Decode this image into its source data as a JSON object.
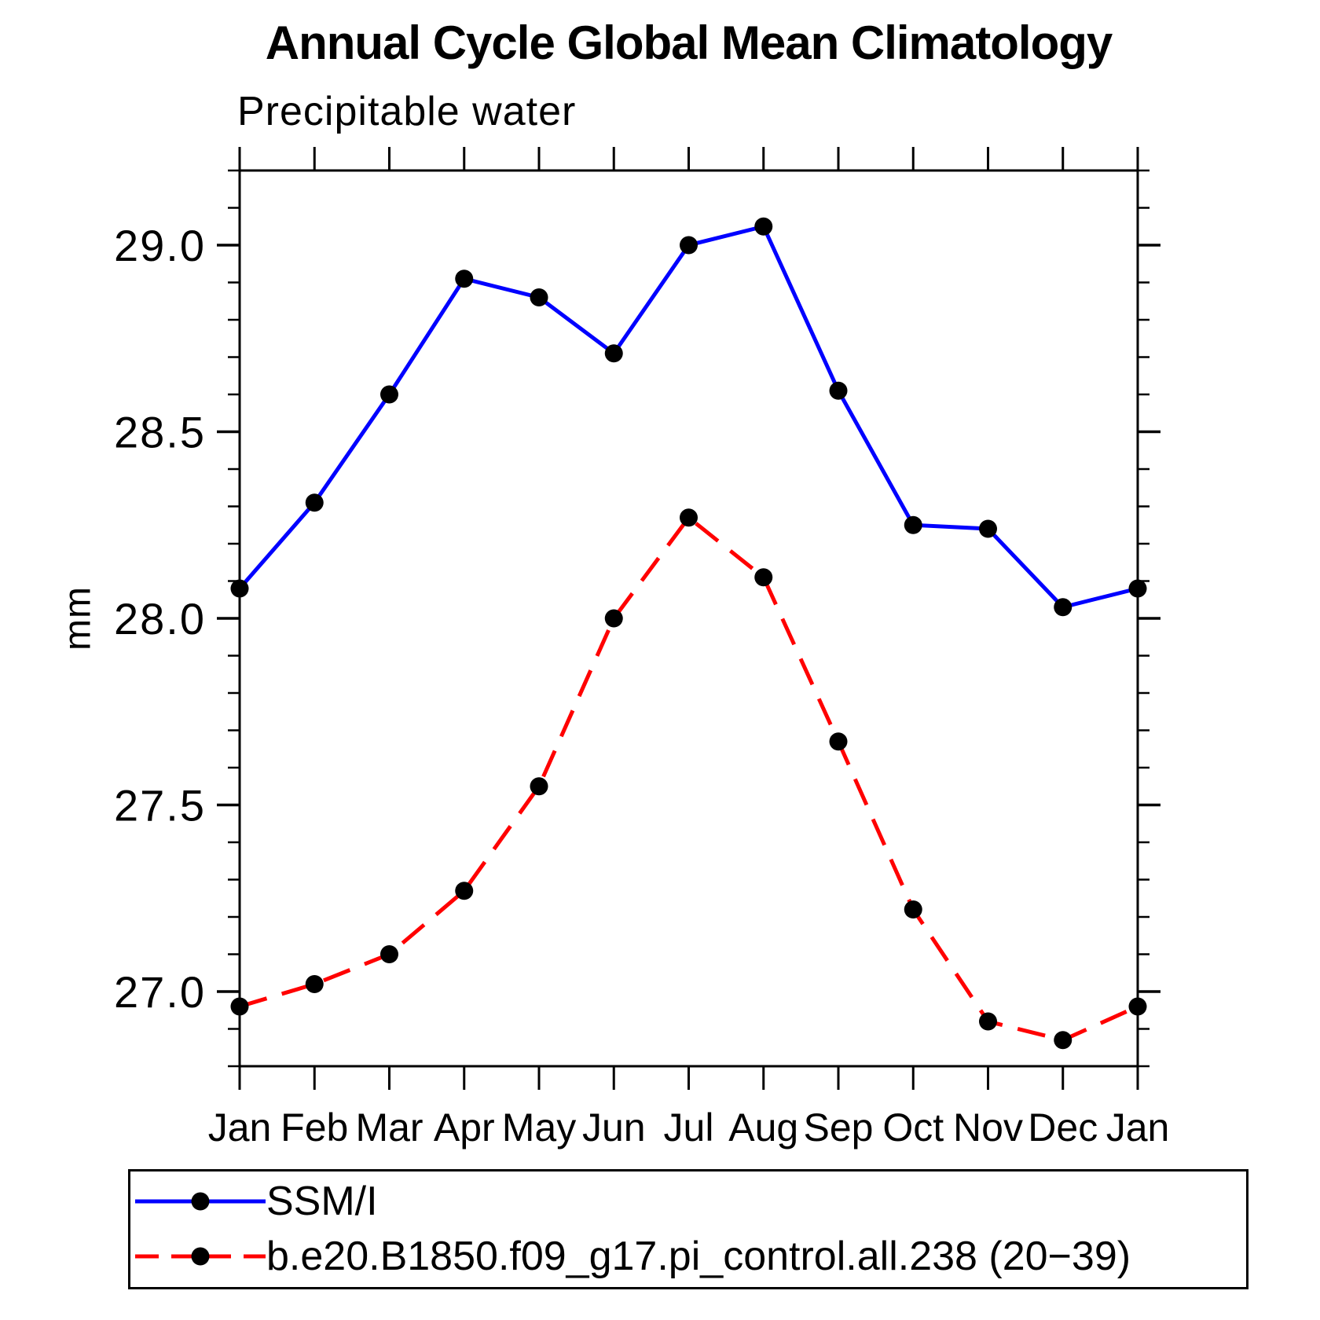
{
  "chart_data": {
    "type": "line",
    "title": "Annual Cycle Global Mean Climatology",
    "subtitle": "Precipitable water",
    "ylabel": "mm",
    "xlabel": "",
    "categories": [
      "Jan",
      "Feb",
      "Mar",
      "Apr",
      "May",
      "Jun",
      "Jul",
      "Aug",
      "Sep",
      "Oct",
      "Nov",
      "Dec",
      "Jan"
    ],
    "series": [
      {
        "name": "SSM/I",
        "color": "#0000ff",
        "line_style": "solid",
        "marker": "filled-circle",
        "marker_color": "#000000",
        "values": [
          28.08,
          28.31,
          28.6,
          28.91,
          28.86,
          28.71,
          29.0,
          29.05,
          28.61,
          28.25,
          28.24,
          28.03,
          28.08
        ]
      },
      {
        "name": "b.e20.B1850.f09_g17.pi_control.all.238 (20−39)",
        "color": "#ff0000",
        "line_style": "dashed",
        "marker": "filled-circle",
        "marker_color": "#000000",
        "values": [
          26.96,
          27.02,
          27.1,
          27.27,
          27.55,
          28.0,
          28.27,
          28.11,
          27.67,
          27.22,
          26.92,
          26.87,
          26.96
        ]
      }
    ],
    "ylim": [
      26.8,
      29.2
    ],
    "yticks_major": [
      27.0,
      27.5,
      28.0,
      28.5,
      29.0
    ],
    "ytick_labels": [
      "27.0",
      "27.5",
      "28.0",
      "28.5",
      "29.0"
    ],
    "ytick_minor_step": 0.1,
    "grid": false,
    "legend_position": "bottom"
  }
}
